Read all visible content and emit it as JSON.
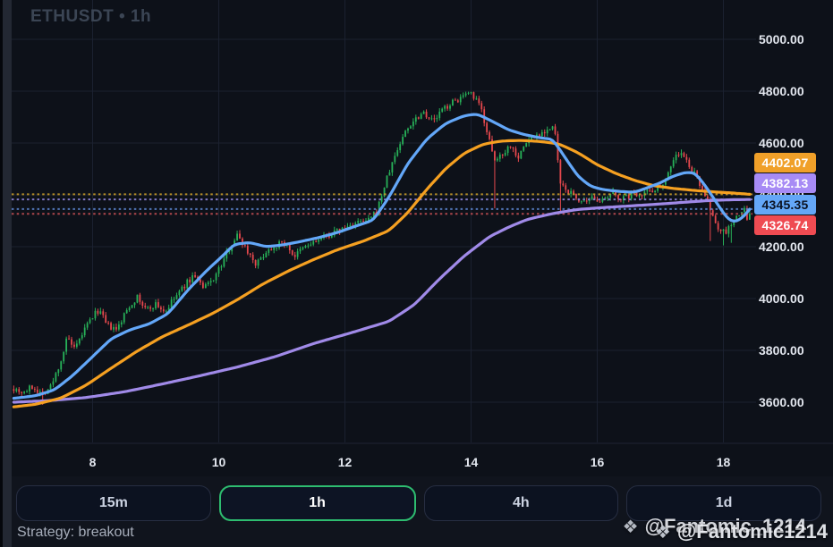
{
  "chart": {
    "title": "ETHUSDT • 1h"
  },
  "strategy_label": "Strategy: breakout",
  "timeframes": [
    {
      "label": "15m",
      "selected": false
    },
    {
      "label": "1h",
      "selected": true
    },
    {
      "label": "4h",
      "selected": false
    },
    {
      "label": "1d",
      "selected": false
    }
  ],
  "watermark": {
    "icon": "binance-diamond-icon",
    "icon_glyph": "❖",
    "front_text": "@Fantomic1214",
    "back_text": "@Fantomic_1214"
  },
  "chart_data": {
    "type": "candlestick",
    "symbol": "ETHUSDT",
    "interval": "1h",
    "grid": true,
    "y_axis": {
      "ticks": [
        5000,
        4800,
        4600,
        4400,
        4200,
        4000,
        3800,
        3600
      ],
      "decimals": 2
    },
    "x_axis": {
      "ticks": [
        8,
        10,
        12,
        14,
        16,
        18
      ],
      "label_type": "day-of-month"
    },
    "price_labels": [
      {
        "name": "ma-orange",
        "value": 4402.07,
        "bg": "#f0a029",
        "fg": "#ffffff",
        "line_color": "#c69c28"
      },
      {
        "name": "ma-purple",
        "value": 4382.13,
        "bg": "#a78bf5",
        "fg": "#ffffff",
        "line_color": "#8e84d8"
      },
      {
        "name": "ma-blue",
        "value": 4345.35,
        "bg": "#64a7f7",
        "fg": "#0b1322",
        "line_color": "#5a82c9"
      },
      {
        "name": "last-price",
        "value": 4326.74,
        "bg": "#ef4b52",
        "fg": "#ffffff",
        "line_color": "#bf4d52"
      }
    ],
    "colors": {
      "up": "#27b158",
      "down": "#e5484d",
      "ma_blue": "#63a7f8",
      "ma_orange": "#f5a021",
      "ma_purple": "#a08ae8",
      "grid": "#1b2130",
      "separator": "#1e2433",
      "axis_text": "#e2e6ee"
    },
    "candles": {
      "start_day": 6.75,
      "end_day": 18.42,
      "per_day": 24,
      "noise_seed": 7,
      "clamp_high": 4798,
      "clamp_low": 3575,
      "last_close": 4326.74
    },
    "series": {
      "close_keyframes": [
        [
          6.75,
          3655
        ],
        [
          6.9,
          3638
        ],
        [
          7.05,
          3660
        ],
        [
          7.2,
          3632
        ],
        [
          7.35,
          3665
        ],
        [
          7.5,
          3762
        ],
        [
          7.6,
          3850
        ],
        [
          7.72,
          3798
        ],
        [
          7.85,
          3872
        ],
        [
          8.0,
          3930
        ],
        [
          8.1,
          3958
        ],
        [
          8.22,
          3898
        ],
        [
          8.38,
          3876
        ],
        [
          8.55,
          3960
        ],
        [
          8.7,
          4006
        ],
        [
          8.85,
          3956
        ],
        [
          9.0,
          3978
        ],
        [
          9.15,
          3948
        ],
        [
          9.3,
          4002
        ],
        [
          9.5,
          4062
        ],
        [
          9.62,
          4092
        ],
        [
          9.75,
          4038
        ],
        [
          9.9,
          4072
        ],
        [
          10.05,
          4132
        ],
        [
          10.2,
          4212
        ],
        [
          10.3,
          4246
        ],
        [
          10.45,
          4186
        ],
        [
          10.6,
          4132
        ],
        [
          10.75,
          4182
        ],
        [
          10.9,
          4206
        ],
        [
          11.05,
          4216
        ],
        [
          11.2,
          4162
        ],
        [
          11.35,
          4196
        ],
        [
          11.55,
          4222
        ],
        [
          11.75,
          4246
        ],
        [
          11.95,
          4266
        ],
        [
          12.15,
          4290
        ],
        [
          12.35,
          4296
        ],
        [
          12.5,
          4332
        ],
        [
          12.65,
          4452
        ],
        [
          12.8,
          4556
        ],
        [
          12.95,
          4642
        ],
        [
          13.1,
          4692
        ],
        [
          13.25,
          4722
        ],
        [
          13.4,
          4682
        ],
        [
          13.55,
          4730
        ],
        [
          13.7,
          4756
        ],
        [
          13.85,
          4776
        ],
        [
          14.0,
          4786
        ],
        [
          14.15,
          4740
        ],
        [
          14.28,
          4622
        ],
        [
          14.36,
          4525
        ],
        [
          14.5,
          4562
        ],
        [
          14.62,
          4592
        ],
        [
          14.75,
          4548
        ],
        [
          14.9,
          4612
        ],
        [
          15.05,
          4632
        ],
        [
          15.2,
          4652
        ],
        [
          15.32,
          4658
        ],
        [
          15.42,
          4432
        ],
        [
          15.55,
          4412
        ],
        [
          15.68,
          4386
        ],
        [
          15.82,
          4362
        ],
        [
          15.95,
          4392
        ],
        [
          16.1,
          4372
        ],
        [
          16.25,
          4406
        ],
        [
          16.4,
          4384
        ],
        [
          16.55,
          4402
        ],
        [
          16.7,
          4408
        ],
        [
          16.85,
          4418
        ],
        [
          17.0,
          4432
        ],
        [
          17.12,
          4482
        ],
        [
          17.22,
          4546
        ],
        [
          17.32,
          4562
        ],
        [
          17.45,
          4516
        ],
        [
          17.58,
          4466
        ],
        [
          17.7,
          4408
        ],
        [
          17.8,
          4332
        ],
        [
          17.92,
          4272
        ],
        [
          18.02,
          4252
        ],
        [
          18.12,
          4282
        ],
        [
          18.24,
          4320
        ],
        [
          18.32,
          4346
        ],
        [
          18.38,
          4312
        ],
        [
          18.42,
          4326.74
        ]
      ],
      "spikes": [
        {
          "day": 7.2,
          "low": 3590
        },
        {
          "day": 10.3,
          "high": 4262
        },
        {
          "day": 13.9,
          "high": 4792
        },
        {
          "day": 14.36,
          "low": 4348
        },
        {
          "day": 15.42,
          "low": 4335
        },
        {
          "day": 17.8,
          "low": 4222
        },
        {
          "day": 18.0,
          "low": 4205
        },
        {
          "day": 18.12,
          "low": 4215
        }
      ],
      "ma_blue": [
        [
          6.75,
          3615
        ],
        [
          7.1,
          3625
        ],
        [
          7.4,
          3648
        ],
        [
          7.7,
          3706
        ],
        [
          8.0,
          3776
        ],
        [
          8.3,
          3846
        ],
        [
          8.6,
          3880
        ],
        [
          8.9,
          3902
        ],
        [
          9.2,
          3942
        ],
        [
          9.5,
          4030
        ],
        [
          9.8,
          4106
        ],
        [
          10.05,
          4162
        ],
        [
          10.25,
          4210
        ],
        [
          10.5,
          4216
        ],
        [
          10.75,
          4200
        ],
        [
          11.0,
          4206
        ],
        [
          11.3,
          4220
        ],
        [
          11.6,
          4236
        ],
        [
          11.9,
          4256
        ],
        [
          12.2,
          4282
        ],
        [
          12.45,
          4302
        ],
        [
          12.7,
          4392
        ],
        [
          13.0,
          4522
        ],
        [
          13.3,
          4616
        ],
        [
          13.6,
          4676
        ],
        [
          13.9,
          4706
        ],
        [
          14.1,
          4712
        ],
        [
          14.35,
          4682
        ],
        [
          14.6,
          4650
        ],
        [
          14.85,
          4632
        ],
        [
          15.1,
          4620
        ],
        [
          15.3,
          4614
        ],
        [
          15.5,
          4540
        ],
        [
          15.7,
          4470
        ],
        [
          15.9,
          4432
        ],
        [
          16.1,
          4420
        ],
        [
          16.35,
          4413
        ],
        [
          16.6,
          4410
        ],
        [
          16.8,
          4428
        ],
        [
          17.0,
          4446
        ],
        [
          17.2,
          4472
        ],
        [
          17.4,
          4487
        ],
        [
          17.55,
          4485
        ],
        [
          17.7,
          4440
        ],
        [
          17.85,
          4385
        ],
        [
          18.0,
          4330
        ],
        [
          18.1,
          4300
        ],
        [
          18.2,
          4295
        ],
        [
          18.32,
          4315
        ],
        [
          18.42,
          4345.35
        ]
      ],
      "ma_orange": [
        [
          6.75,
          3582
        ],
        [
          7.1,
          3592
        ],
        [
          7.5,
          3616
        ],
        [
          7.9,
          3666
        ],
        [
          8.3,
          3732
        ],
        [
          8.7,
          3796
        ],
        [
          9.1,
          3852
        ],
        [
          9.5,
          3896
        ],
        [
          9.9,
          3942
        ],
        [
          10.3,
          3996
        ],
        [
          10.7,
          4056
        ],
        [
          11.1,
          4106
        ],
        [
          11.5,
          4150
        ],
        [
          11.9,
          4190
        ],
        [
          12.3,
          4222
        ],
        [
          12.7,
          4262
        ],
        [
          13.0,
          4332
        ],
        [
          13.3,
          4422
        ],
        [
          13.6,
          4502
        ],
        [
          13.9,
          4562
        ],
        [
          14.2,
          4596
        ],
        [
          14.5,
          4608
        ],
        [
          14.8,
          4610
        ],
        [
          15.1,
          4606
        ],
        [
          15.4,
          4596
        ],
        [
          15.7,
          4562
        ],
        [
          16.0,
          4516
        ],
        [
          16.3,
          4482
        ],
        [
          16.6,
          4455
        ],
        [
          16.9,
          4435
        ],
        [
          17.2,
          4425
        ],
        [
          17.5,
          4418
        ],
        [
          17.8,
          4412
        ],
        [
          18.1,
          4408
        ],
        [
          18.42,
          4402.07
        ]
      ],
      "ma_purple": [
        [
          6.75,
          3600
        ],
        [
          7.3,
          3606
        ],
        [
          7.9,
          3618
        ],
        [
          8.5,
          3640
        ],
        [
          9.1,
          3670
        ],
        [
          9.7,
          3702
        ],
        [
          10.3,
          3736
        ],
        [
          10.9,
          3776
        ],
        [
          11.5,
          3826
        ],
        [
          12.1,
          3868
        ],
        [
          12.7,
          3912
        ],
        [
          13.1,
          3976
        ],
        [
          13.5,
          4076
        ],
        [
          13.9,
          4166
        ],
        [
          14.3,
          4240
        ],
        [
          14.6,
          4276
        ],
        [
          14.9,
          4306
        ],
        [
          15.3,
          4328
        ],
        [
          15.7,
          4344
        ],
        [
          16.1,
          4351
        ],
        [
          16.5,
          4357
        ],
        [
          16.9,
          4363
        ],
        [
          17.3,
          4370
        ],
        [
          17.7,
          4377
        ],
        [
          18.1,
          4381
        ],
        [
          18.42,
          4382.13
        ]
      ]
    }
  }
}
